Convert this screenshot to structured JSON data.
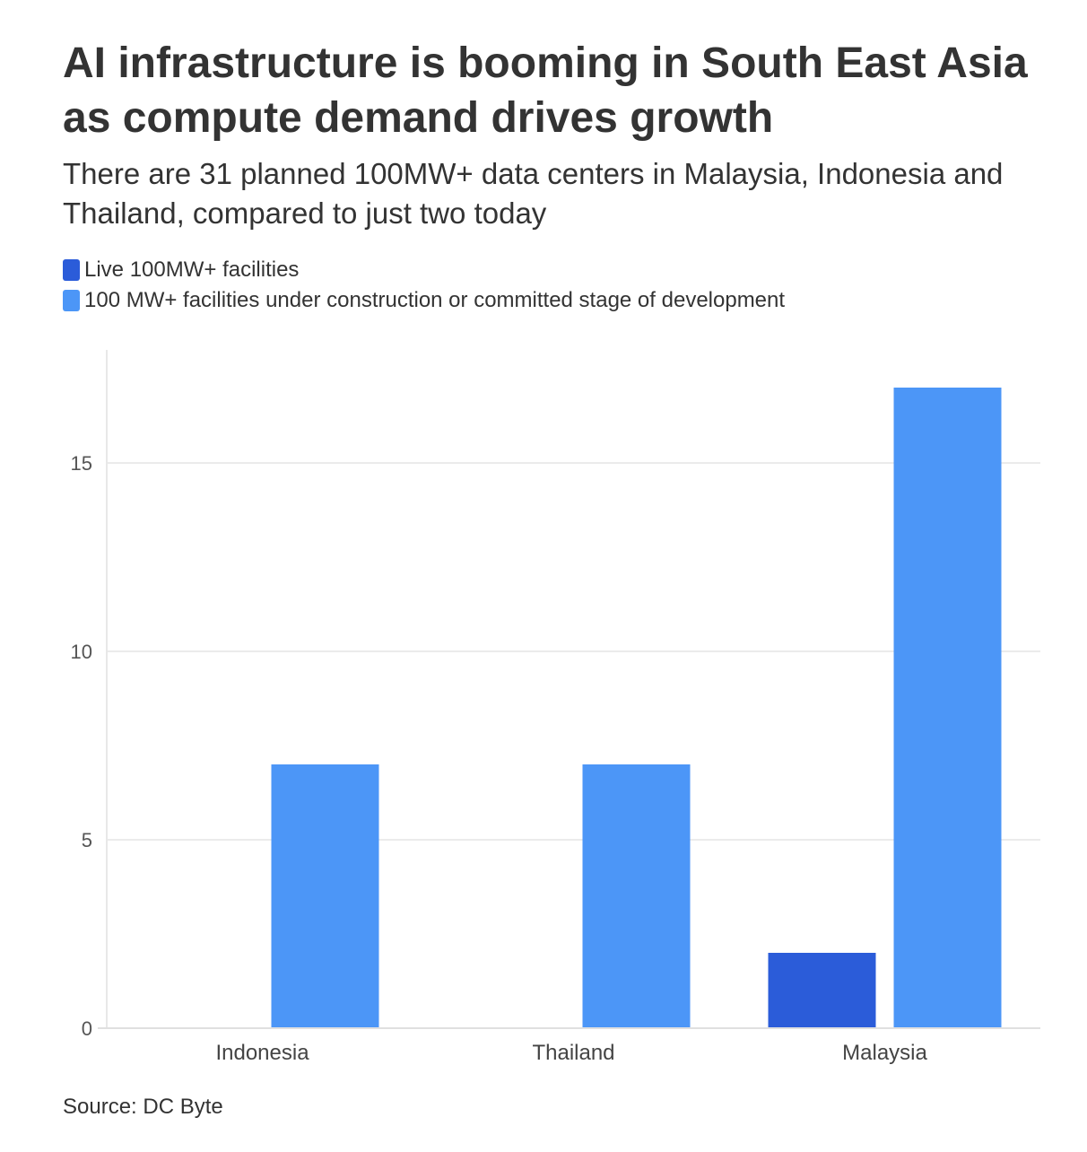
{
  "header": {
    "title": "AI infrastructure is booming in South East Asia as compute demand drives growth",
    "subtitle": "There are 31 planned 100MW+ data centers in Malaysia, Indonesia and Thailand, compared to just two today"
  },
  "legend": {
    "items": [
      {
        "label": "Live 100MW+ facilities",
        "color": "#2b5cd9"
      },
      {
        "label": "100 MW+ facilities under construction or committed stage of development",
        "color": "#4c96f7"
      }
    ]
  },
  "chart_data": {
    "type": "bar",
    "categories": [
      "Indonesia",
      "Thailand",
      "Malaysia"
    ],
    "series": [
      {
        "name": "Live 100MW+ facilities",
        "values": [
          0,
          0,
          2
        ],
        "color": "#2b5cd9"
      },
      {
        "name": "100 MW+ facilities under construction or committed stage of development",
        "values": [
          7,
          7,
          17
        ],
        "color": "#4c96f7"
      }
    ],
    "yticks": [
      0,
      5,
      10,
      15
    ],
    "ylim": [
      0,
      18
    ],
    "grid": true,
    "legend_position": "top-left"
  },
  "footer": {
    "source": "Source: DC Byte"
  }
}
